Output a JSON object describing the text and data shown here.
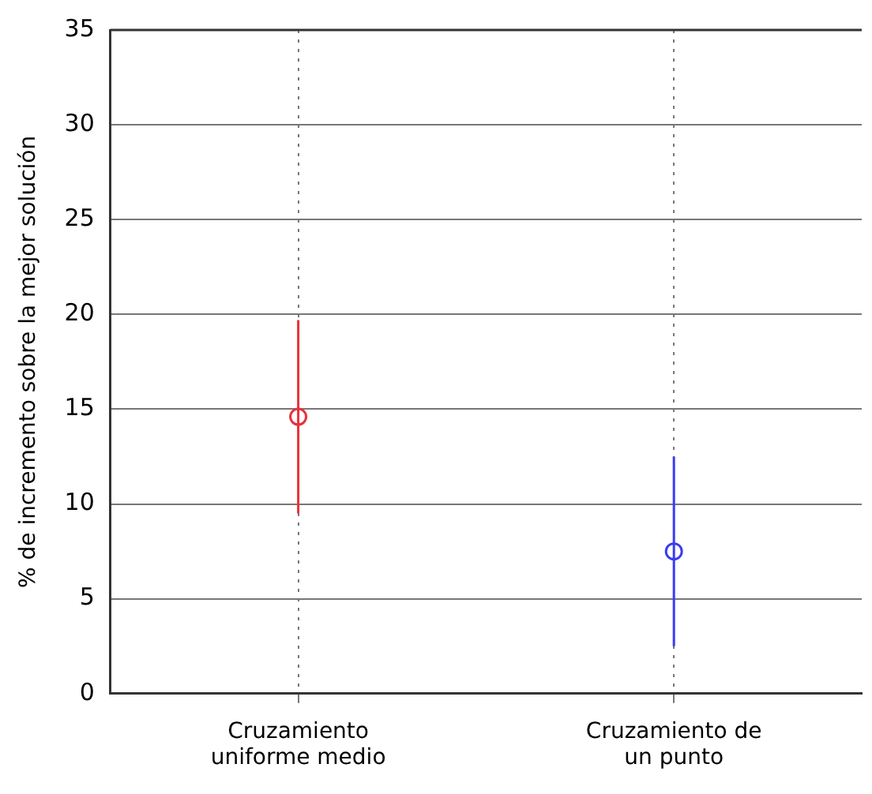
{
  "chart_data": {
    "type": "scatter",
    "ylabel": "% de incremento sobre la mejor solución",
    "categories": [
      "Cruzamiento uniforme medio",
      "Cruzamiento de un punto"
    ],
    "values": [
      14.6,
      7.5
    ],
    "colors": [
      "#e8313a",
      "#3b3bf0"
    ],
    "errors": [
      [
        9.5,
        19.7
      ],
      [
        2.5,
        12.5
      ]
    ],
    "ylim": [
      0,
      35
    ],
    "yticks": [
      0,
      5,
      10,
      15,
      20,
      25,
      30,
      35
    ],
    "grid": true,
    "marker": "circle"
  }
}
